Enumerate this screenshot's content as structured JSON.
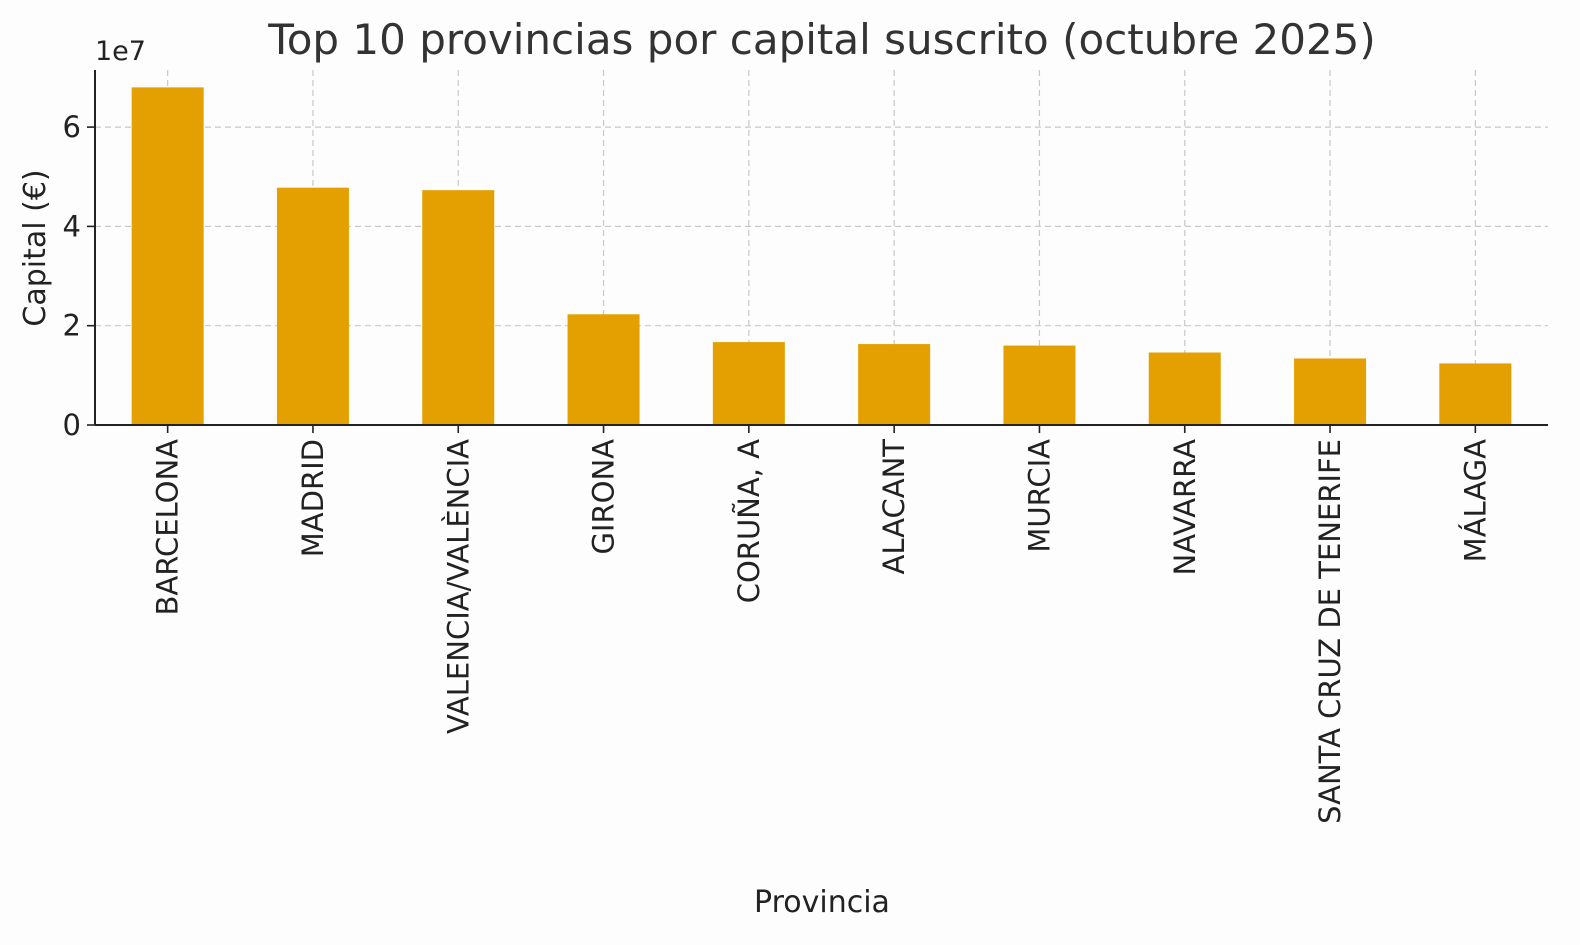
{
  "chart_data": {
    "type": "bar",
    "title": "Top 10 provincias por capital suscrito (octubre 2025)",
    "xlabel": "Provincia",
    "ylabel": "Capital (€)",
    "y_offset_label": "1e7",
    "ylim": [
      0,
      71500000
    ],
    "y_ticks": [
      0,
      20000000,
      40000000,
      60000000
    ],
    "y_tick_labels": [
      "0",
      "2",
      "4",
      "6"
    ],
    "grid": true,
    "bar_color": "#e3a000",
    "categories": [
      "BARCELONA",
      "MADRID",
      "VALENCIA/VALÈNCIA",
      "GIRONA",
      "CORUÑA, A",
      "ALACANT",
      "MURCIA",
      "NAVARRA",
      "SANTA CRUZ DE TENERIFE",
      "MÁLAGA"
    ],
    "values": [
      68000000,
      47800000,
      47300000,
      22300000,
      16700000,
      16300000,
      16000000,
      14600000,
      13400000,
      12400000
    ]
  }
}
